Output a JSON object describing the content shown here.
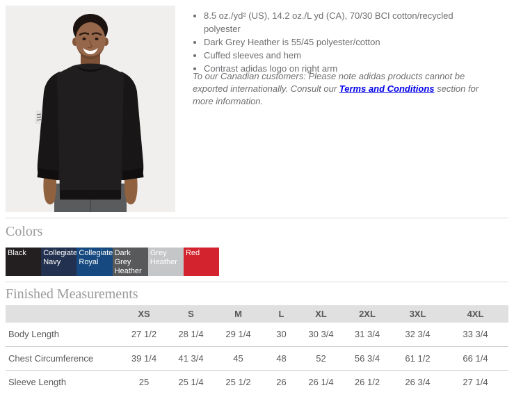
{
  "product": {
    "image_alt": "Model wearing black adidas crewneck sweatshirt",
    "features": [
      "8.5 oz./yd² (US), 14.2 oz./L yd (CA), 70/30 BCI cotton/recycled polyester",
      "Dark Grey Heather is 55/45 polyester/cotton",
      "Cuffed sleeves and hem",
      "Contrast adidas logo on right arm"
    ],
    "canadian_note": {
      "before_link": "To our Canadian customers: Please note adidas products cannot be exported internationally. Consult our ",
      "link_text": "Terms and Conditions",
      "after_link": " section for more information.",
      "link_color": "#0000e8"
    }
  },
  "colors_section": {
    "heading": "Colors",
    "swatches": [
      {
        "label": "Black",
        "hex": "#231f20",
        "text_color": "#ffffff"
      },
      {
        "label": "Collegiate Navy",
        "hex": "#233150",
        "text_color": "#ffffff"
      },
      {
        "label": "Collegiate Royal",
        "hex": "#15497f",
        "text_color": "#ffffff"
      },
      {
        "label": "Dark Grey Heather",
        "hex": "#58595b",
        "text_color": "#ffffff"
      },
      {
        "label": "Grey Heather",
        "hex": "#c5c6c8",
        "text_color": "#ffffff"
      },
      {
        "label": "Red",
        "hex": "#d2232e",
        "text_color": "#ffffff"
      }
    ]
  },
  "measurements_section": {
    "heading": "Finished Measurements",
    "columns": [
      "XS",
      "S",
      "M",
      "L",
      "XL",
      "2XL",
      "3XL",
      "4XL"
    ],
    "rows": [
      {
        "label": "Body Length",
        "values": [
          "27 1/2",
          "28 1/4",
          "29 1/4",
          "30",
          "30 3/4",
          "31 3/4",
          "32 3/4",
          "33 3/4"
        ]
      },
      {
        "label": "Chest Circumference",
        "values": [
          "39 1/4",
          "41 3/4",
          "45",
          "48",
          "52",
          "56 3/4",
          "61 1/2",
          "66 1/4"
        ]
      },
      {
        "label": "Sleeve Length",
        "values": [
          "25",
          "25 1/4",
          "25 1/2",
          "26",
          "26 1/4",
          "26 1/2",
          "26 3/4",
          "27 1/4"
        ]
      }
    ],
    "header_bg": "#e0e0e0"
  }
}
